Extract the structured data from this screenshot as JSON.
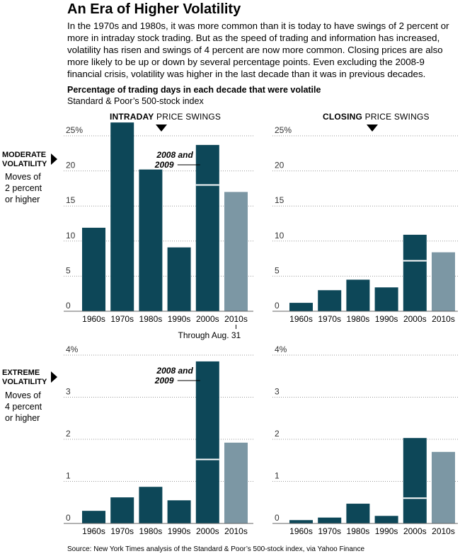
{
  "title": "An Era of Higher Volatility",
  "intro": "In the 1970s and 1980s, it was more common than it is today to have swings of 2 percent or more in intraday stock trading. But as the speed of trading and information has increased, volatility has risen and swings of 4 percent are now more common. Closing prices are also more likely to be up or down by several percentage points. Even excluding the 2008-9 financial crisis, volatility was higher in the last decade than it was in previous decades.",
  "subtitle": "Percentage of trading days in each decade that were volatile",
  "subtitle2": "Standard & Poor’s 500-stock index",
  "columns": {
    "intraday": {
      "bold": "INTRADAY",
      "rest": " PRICE SWINGS"
    },
    "closing": {
      "bold": "CLOSING",
      "rest": " PRICE SWINGS"
    }
  },
  "rows": {
    "moderate": {
      "label_line1": "MODERATE",
      "label_line2": "VOLATILITY",
      "sub_line1": "Moves of",
      "sub_line2": "2 percent",
      "sub_line3": "or higher"
    },
    "extreme": {
      "label_line1": "EXTREME",
      "label_line2": "VOLATILITY",
      "sub_line1": "Moves of",
      "sub_line2": "4 percent",
      "sub_line3": "or higher"
    }
  },
  "source": "Source: New York Times analysis of the Standard & Poor’s 500-stock index, via Yahoo Finance",
  "colors": {
    "bar": "#0d4758",
    "bar_recent": "#7c97a4",
    "grid": "#999999",
    "divider": "#ffffff"
  },
  "chart_data": [
    {
      "type": "bar",
      "id": "moderate-intraday",
      "categories": [
        "1960s",
        "1970s",
        "1980s",
        "1990s",
        "2000s",
        "2010s"
      ],
      "values": [
        11.9,
        26.9,
        20.2,
        9.1,
        23.7,
        17.0
      ],
      "crisis_split_2000s": 18.0,
      "ylim": [
        0,
        25
      ],
      "yticks": [
        0,
        5,
        10,
        15,
        20,
        25
      ],
      "ytick_labels": [
        "0",
        "5",
        "10",
        "15",
        "20",
        "25%"
      ],
      "annotation": {
        "line1": "2008 and",
        "line2": "2009"
      },
      "note": "Through Aug. 31",
      "grid": true
    },
    {
      "type": "bar",
      "id": "moderate-closing",
      "categories": [
        "1960s",
        "1970s",
        "1980s",
        "1990s",
        "2000s",
        "2010s"
      ],
      "values": [
        1.2,
        3.0,
        4.5,
        3.4,
        10.9,
        8.4
      ],
      "crisis_split_2000s": 7.2,
      "ylim": [
        0,
        25
      ],
      "yticks": [
        0,
        5,
        10,
        15,
        20,
        25
      ],
      "ytick_labels": [
        "0",
        "5",
        "10",
        "15",
        "20",
        "25%"
      ],
      "grid": true
    },
    {
      "type": "bar",
      "id": "extreme-intraday",
      "categories": [
        "1960s",
        "1970s",
        "1980s",
        "1990s",
        "2000s",
        "2010s"
      ],
      "values": [
        0.3,
        0.62,
        0.87,
        0.55,
        3.85,
        1.92
      ],
      "crisis_split_2000s": 1.52,
      "ylim": [
        0,
        4
      ],
      "yticks": [
        0,
        1,
        2,
        3,
        4
      ],
      "ytick_labels": [
        "0",
        "1",
        "2",
        "3",
        "4%"
      ],
      "annotation": {
        "line1": "2008 and",
        "line2": "2009"
      },
      "grid": true
    },
    {
      "type": "bar",
      "id": "extreme-closing",
      "categories": [
        "1960s",
        "1970s",
        "1980s",
        "1990s",
        "2000s",
        "2010s"
      ],
      "values": [
        0.08,
        0.14,
        0.47,
        0.18,
        2.03,
        1.7
      ],
      "crisis_split_2000s": 0.6,
      "ylim": [
        0,
        4
      ],
      "yticks": [
        0,
        1,
        2,
        3,
        4
      ],
      "ytick_labels": [
        "0",
        "1",
        "2",
        "3",
        "4%"
      ],
      "grid": true
    }
  ]
}
